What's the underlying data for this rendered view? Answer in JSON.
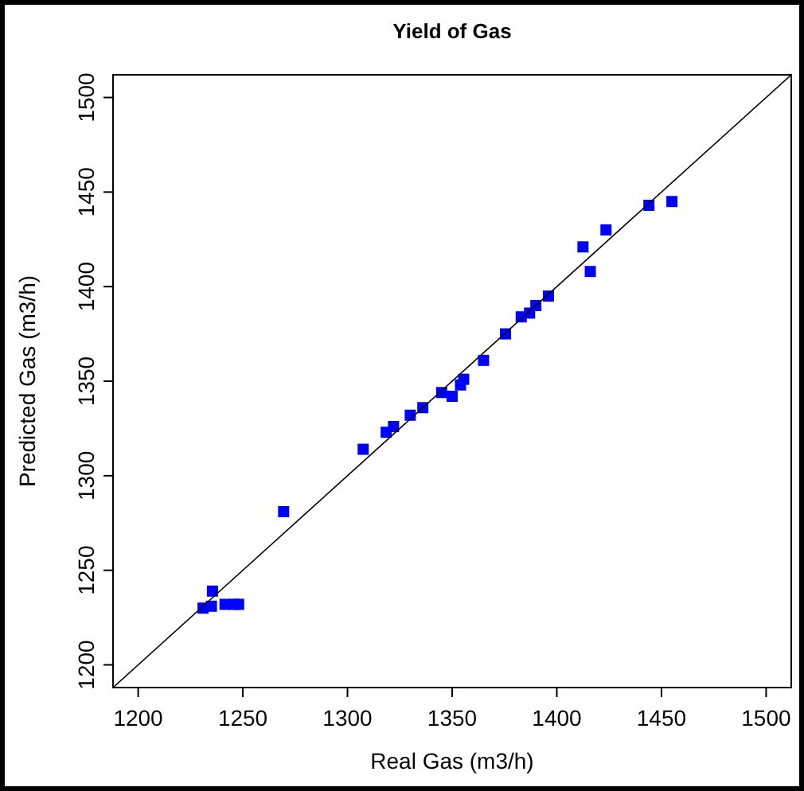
{
  "chart_data": {
    "type": "scatter",
    "title": "Yield of Gas",
    "xlabel": "Real Gas (m3/h)",
    "ylabel": "Predicted Gas (m3/h)",
    "xlim": [
      1188,
      1512
    ],
    "ylim": [
      1188,
      1512
    ],
    "xticks": [
      1200,
      1250,
      1300,
      1350,
      1400,
      1450,
      1500
    ],
    "yticks": [
      1200,
      1250,
      1300,
      1350,
      1400,
      1450,
      1500
    ],
    "grid": false,
    "series": [
      {
        "color": "#0000ff",
        "marker": "square",
        "x": [
          1231,
          1235,
          1235.5,
          1241.5,
          1246,
          1248,
          1269.5,
          1307.5,
          1318.5,
          1322,
          1330,
          1336,
          1345,
          1350,
          1354,
          1355.5,
          1365,
          1375.5,
          1383,
          1387,
          1390,
          1396,
          1412.5,
          1416,
          1423.5,
          1444,
          1455
        ],
        "values": [
          1230,
          1231,
          1239,
          1232,
          1232,
          1232,
          1281,
          1314,
          1323,
          1326,
          1332,
          1336,
          1344,
          1342,
          1348,
          1351,
          1361,
          1375,
          1384,
          1386,
          1390,
          1395,
          1421,
          1408,
          1430,
          1443,
          1445
        ]
      },
      {
        "type": "line",
        "color": "#000000",
        "line_style": "solid",
        "marker": "none",
        "x": [
          1188,
          1512
        ],
        "values": [
          1188,
          1512
        ]
      }
    ]
  }
}
